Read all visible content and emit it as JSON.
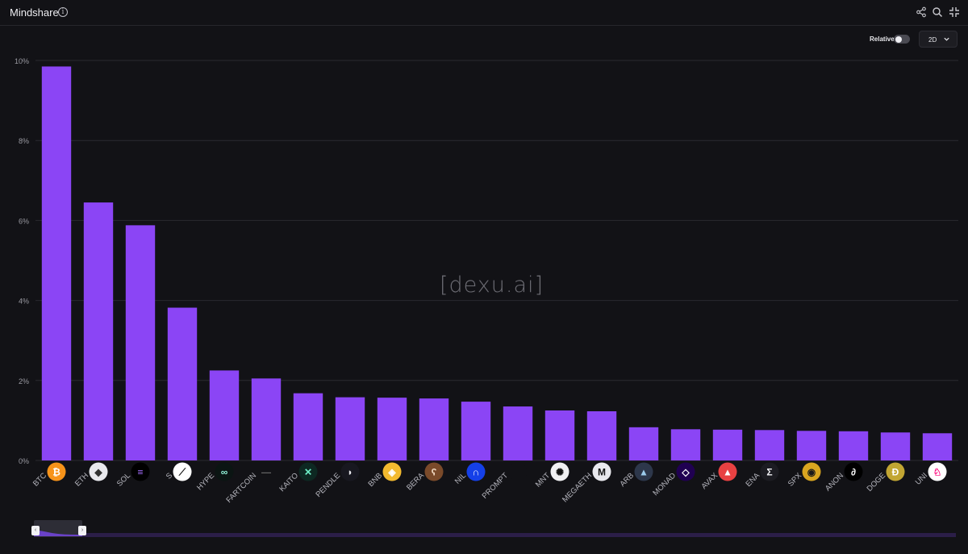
{
  "header": {
    "title": "Mindshare",
    "info_glyph": "i",
    "icons": [
      "share-icon",
      "search-icon",
      "collapse-icon"
    ]
  },
  "controls": {
    "relative_label": "Relative",
    "relative_enabled": false,
    "period_value": "2D"
  },
  "watermark": "[dexu.ai]",
  "colors": {
    "bar": "#8b45f5",
    "background": "#121216",
    "grid": "#2a2a30",
    "scroll_track": "#2b1e48"
  },
  "chart_data": {
    "type": "bar",
    "title": "",
    "xlabel": "",
    "ylabel": "",
    "ylim": [
      0,
      10
    ],
    "yticks": [
      "0%",
      "2%",
      "4%",
      "6%",
      "8%",
      "10%"
    ],
    "grid": true,
    "categories": [
      "BTC",
      "ETH",
      "SOL",
      "S",
      "HYPE",
      "FARTCOIN",
      "KAITO",
      "PENDLE",
      "BNB",
      "BERA",
      "NIL",
      "PROMPT",
      "MNT",
      "MEGAETH",
      "ARB",
      "MONAD",
      "AVAX",
      "ENA",
      "SPX",
      "ANON",
      "DOGE",
      "UNI"
    ],
    "values": [
      9.85,
      6.45,
      5.88,
      3.82,
      2.25,
      2.05,
      1.68,
      1.58,
      1.57,
      1.55,
      1.47,
      1.35,
      1.25,
      1.23,
      0.83,
      0.78,
      0.77,
      0.76,
      0.74,
      0.73,
      0.7,
      0.68
    ],
    "icons": [
      {
        "name": "bitcoin-icon",
        "bg": "#f7931a",
        "fg": "#ffffff",
        "glyph": "₿"
      },
      {
        "name": "ethereum-icon",
        "bg": "#e9e9ee",
        "fg": "#333333",
        "glyph": "◆"
      },
      {
        "name": "solana-icon",
        "bg": "#000000",
        "fg": "#9e6bf5",
        "glyph": "≡"
      },
      {
        "name": "sonic-icon",
        "bg": "#ffffff",
        "fg": "#111111",
        "glyph": "⟋"
      },
      {
        "name": "hyperliquid-icon",
        "bg": "#0b1513",
        "fg": "#8ff0d6",
        "glyph": "∞"
      },
      {
        "name": "fartcoin-icon",
        "bg": "#121216",
        "fg": "#666666",
        "glyph": "—"
      },
      {
        "name": "kaito-icon",
        "bg": "#0d2822",
        "fg": "#6ff0c8",
        "glyph": "✕"
      },
      {
        "name": "pendle-icon",
        "bg": "#181820",
        "fg": "#e9e9ee",
        "glyph": "◗"
      },
      {
        "name": "bnb-icon",
        "bg": "#f3ba2f",
        "fg": "#ffffff",
        "glyph": "◈"
      },
      {
        "name": "bera-icon",
        "bg": "#7a4a2a",
        "fg": "#f0d8c0",
        "glyph": "ʕ"
      },
      {
        "name": "nil-icon",
        "bg": "#1540e8",
        "fg": "#ffffff",
        "glyph": "∩"
      },
      {
        "name": "prompt-icon",
        "bg": "#121216",
        "fg": "#121216",
        "glyph": ""
      },
      {
        "name": "mantle-icon",
        "bg": "#f0f0f2",
        "fg": "#111111",
        "glyph": "✺"
      },
      {
        "name": "megaeth-icon",
        "bg": "#e9e9ee",
        "fg": "#111111",
        "glyph": "M"
      },
      {
        "name": "arbitrum-icon",
        "bg": "#2d374b",
        "fg": "#9dcced",
        "glyph": "▲"
      },
      {
        "name": "monad-icon",
        "bg": "#200052",
        "fg": "#ffffff",
        "glyph": "◇"
      },
      {
        "name": "avalanche-icon",
        "bg": "#e84142",
        "fg": "#ffffff",
        "glyph": "▲"
      },
      {
        "name": "ethena-icon",
        "bg": "#1c1c22",
        "fg": "#f0f0f4",
        "glyph": "Σ"
      },
      {
        "name": "spx-icon",
        "bg": "#d9a520",
        "fg": "#1a1a1a",
        "glyph": "◉"
      },
      {
        "name": "anon-icon",
        "bg": "#000000",
        "fg": "#ffffff",
        "glyph": "∂"
      },
      {
        "name": "dogecoin-icon",
        "bg": "#c2a633",
        "fg": "#ffffff",
        "glyph": "Ð"
      },
      {
        "name": "uniswap-icon",
        "bg": "#ffffff",
        "fg": "#ff007a",
        "glyph": "♘"
      }
    ]
  }
}
